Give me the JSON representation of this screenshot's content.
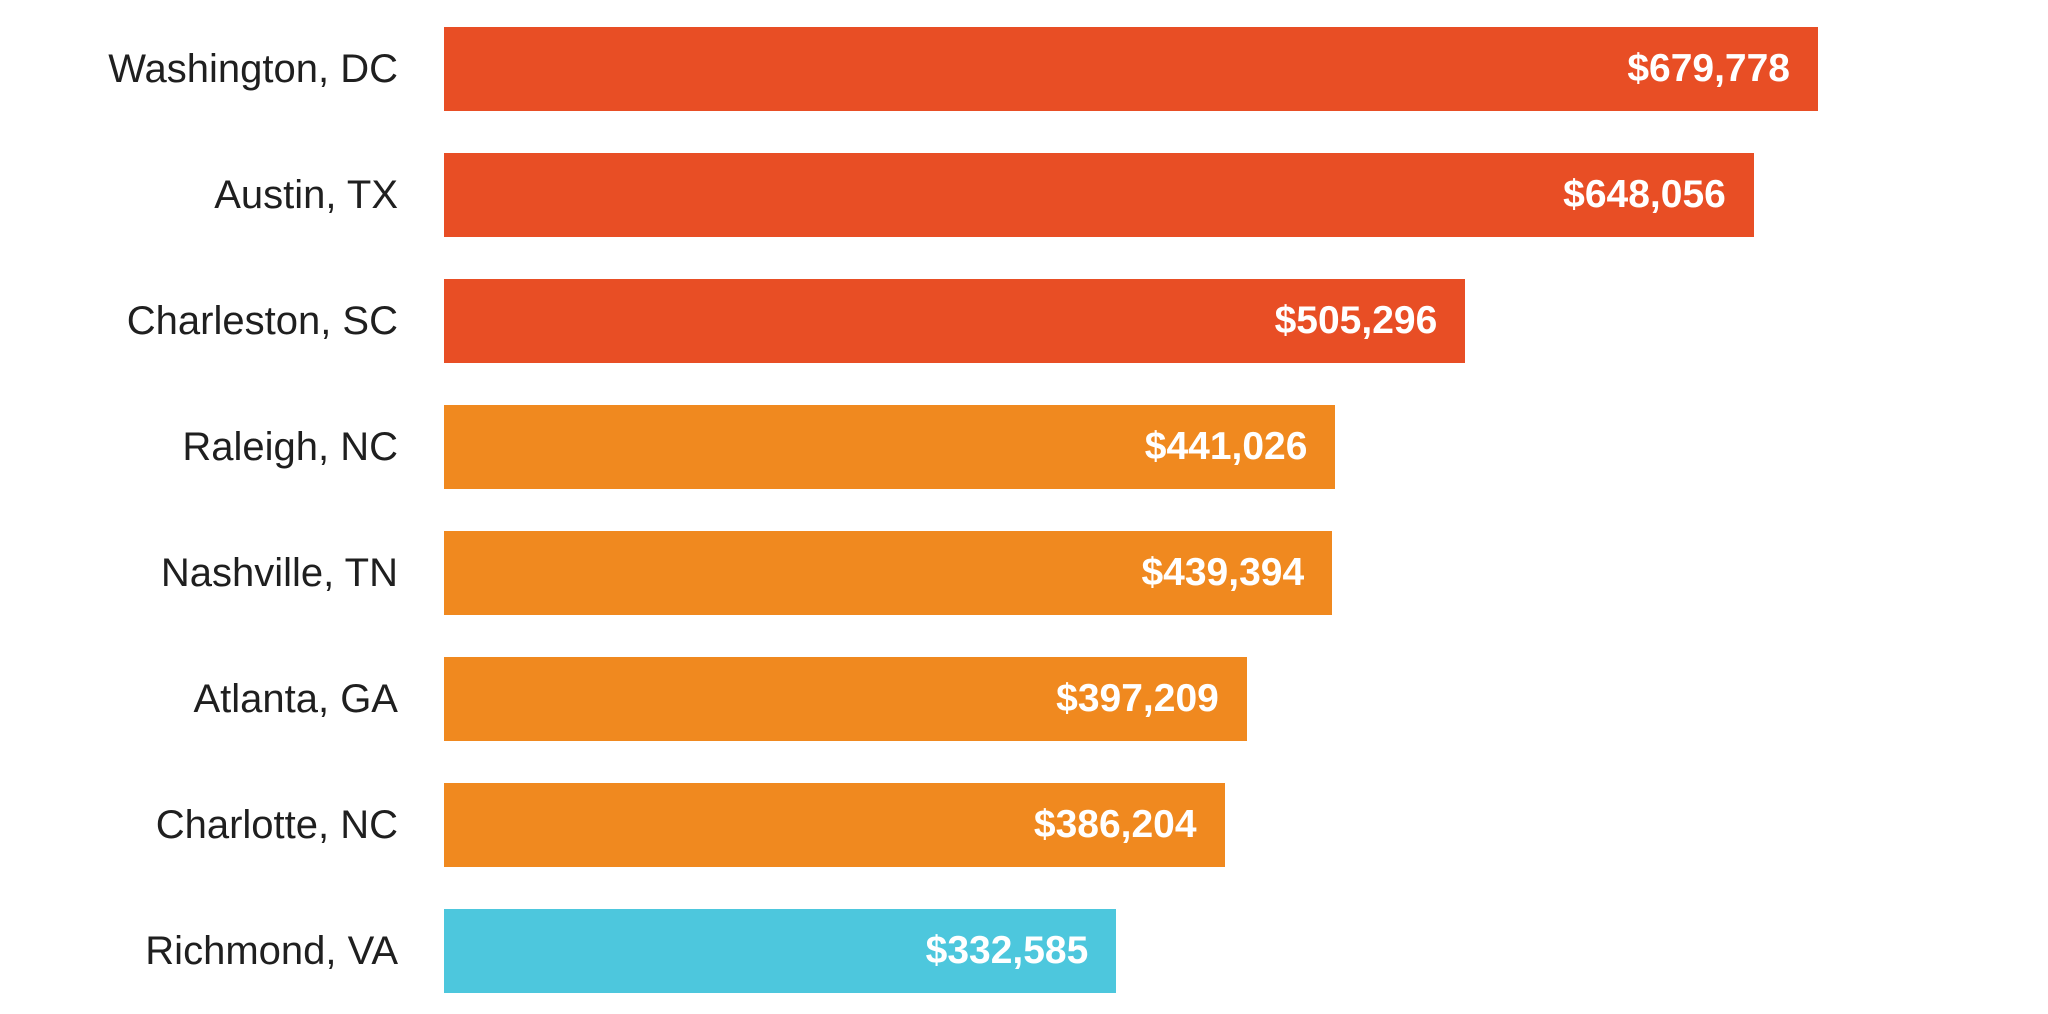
{
  "chart_data": {
    "type": "bar",
    "orientation": "horizontal",
    "title": "",
    "xlabel": "",
    "ylabel": "",
    "grid": false,
    "legend": false,
    "xlim": [
      0,
      679778
    ],
    "categories": [
      "Washington, DC",
      "Austin, TX",
      "Charleston, SC",
      "Raleigh, NC",
      "Nashville, TN",
      "Atlanta, GA",
      "Charlotte, NC",
      "Richmond, VA"
    ],
    "values": [
      679778,
      648056,
      505296,
      441026,
      439394,
      397209,
      386204,
      332585
    ],
    "value_labels": [
      "$679,778",
      "$648,056",
      "$505,296",
      "$441,026",
      "$439,394",
      "$397,209",
      "$386,204",
      "$332,585"
    ],
    "bar_colors": [
      "#E84E25",
      "#E84E25",
      "#E84E25",
      "#F0891F",
      "#F0891F",
      "#F0891F",
      "#F0891F",
      "#4DC7DD"
    ]
  },
  "colors": {
    "background": "#FFFFFF",
    "label_text": "#1F1F1F",
    "value_text": "#FFFFFF"
  }
}
